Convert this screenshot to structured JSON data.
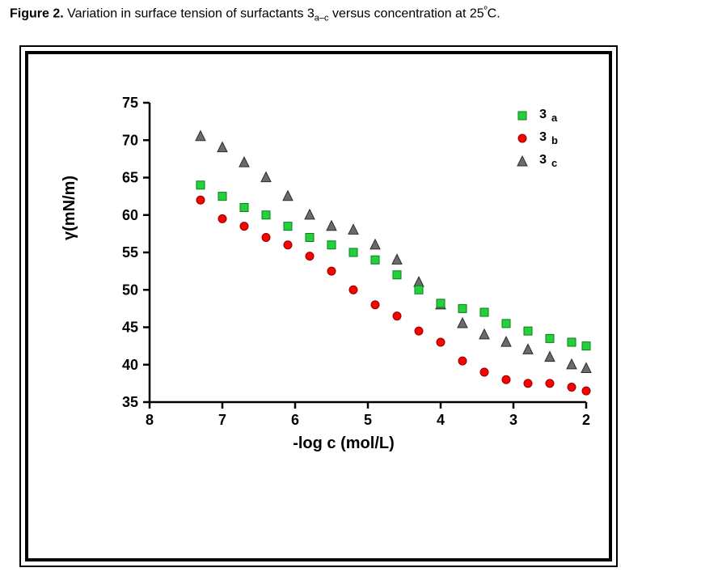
{
  "caption": {
    "prefix_bold": "Figure 2.",
    "rest_before_num": " Variation in surface tension of surfactants 3",
    "sub": "a–c",
    "rest_after_sub": " versus concentration at 25",
    "deg": "º",
    "tail": "C."
  },
  "chart": {
    "type": "scatter",
    "background_color": "#ffffff",
    "outer_border_color": "#000000",
    "inner_border_color": "#000000",
    "axis_font_family": "Arial",
    "tick_fontsize": 18,
    "tick_fontweight": "bold",
    "label_fontsize": 20,
    "label_fontweight": "bold",
    "xlabel": "-log c (mol/L)",
    "ylabel": "γ(mN/m)",
    "x_reversed": true,
    "xlim": [
      8,
      2
    ],
    "ylim": [
      35,
      75
    ],
    "xticks": [
      8,
      7,
      6,
      5,
      4,
      3,
      2
    ],
    "yticks": [
      35,
      40,
      45,
      50,
      55,
      60,
      65,
      70,
      75
    ],
    "legend": {
      "items": [
        {
          "label_main": "3",
          "label_sub": "a",
          "series_key": "a"
        },
        {
          "label_main": "3",
          "label_sub": "b",
          "series_key": "b"
        },
        {
          "label_main": "3",
          "label_sub": "c",
          "series_key": "c"
        }
      ],
      "fontsize": 16,
      "fontweight": "bold"
    },
    "series": {
      "a": {
        "label": "3a",
        "marker": "square",
        "marker_size": 10,
        "color": "#24d13b",
        "edge_color": "#0a7d1f",
        "x": [
          7.3,
          7.0,
          6.7,
          6.4,
          6.1,
          5.8,
          5.5,
          5.2,
          4.9,
          4.6,
          4.3,
          4.0,
          3.7,
          3.4,
          3.1,
          2.8,
          2.5,
          2.2,
          2.0
        ],
        "y": [
          64.0,
          62.5,
          61.0,
          60.0,
          58.5,
          57.0,
          56.0,
          55.0,
          54.0,
          52.0,
          50.0,
          48.2,
          47.5,
          47.0,
          45.5,
          44.5,
          43.5,
          43.0,
          42.5
        ]
      },
      "b": {
        "label": "3b",
        "marker": "circle",
        "marker_size": 10,
        "color": "#ff0000",
        "edge_color": "#8a0000",
        "x": [
          7.3,
          7.0,
          6.7,
          6.4,
          6.1,
          5.8,
          5.5,
          5.2,
          4.9,
          4.6,
          4.3,
          4.0,
          3.7,
          3.4,
          3.1,
          2.8,
          2.5,
          2.2,
          2.0
        ],
        "y": [
          62.0,
          59.5,
          58.5,
          57.0,
          56.0,
          54.5,
          52.5,
          50.0,
          48.0,
          46.5,
          44.5,
          43.0,
          40.5,
          39.0,
          38.0,
          37.5,
          37.5,
          37.0,
          36.5
        ]
      },
      "c": {
        "label": "3c",
        "marker": "triangle",
        "marker_size": 12,
        "color": "#6b6b6b",
        "edge_color": "#2c2c2c",
        "x": [
          7.3,
          7.0,
          6.7,
          6.4,
          6.1,
          5.8,
          5.5,
          5.2,
          4.9,
          4.6,
          4.3,
          4.0,
          3.7,
          3.4,
          3.1,
          2.8,
          2.5,
          2.2,
          2.0
        ],
        "y": [
          70.5,
          69.0,
          67.0,
          65.0,
          62.5,
          60.0,
          58.5,
          58.0,
          56.0,
          54.0,
          51.0,
          48.0,
          45.5,
          44.0,
          43.0,
          42.0,
          41.0,
          40.0,
          39.5
        ]
      }
    }
  }
}
